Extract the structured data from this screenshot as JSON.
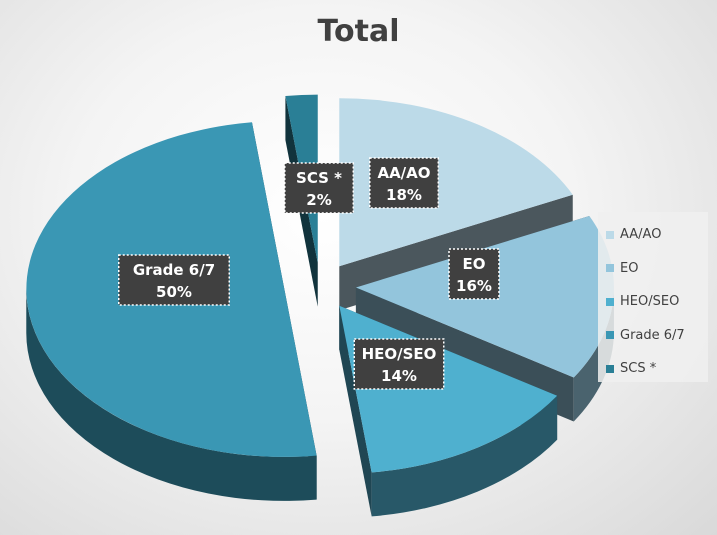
{
  "chart_data": {
    "type": "pie",
    "title": "Total",
    "categories": [
      "AA/AO",
      "EO",
      "HEO/SEO",
      "Grade 6/7",
      "SCS *"
    ],
    "values": [
      18,
      16,
      14,
      50,
      2
    ],
    "data_labels": [
      {
        "category": "AA/AO",
        "pct": "18%"
      },
      {
        "category": "EO",
        "pct": "16%"
      },
      {
        "category": "HEO/SEO",
        "pct": "14%"
      },
      {
        "category": "Grade 6/7",
        "pct": "50%"
      },
      {
        "category": "SCS *",
        "pct": "2%"
      }
    ],
    "colors": [
      "#bcdae8",
      "#93c5dc",
      "#4fb0cf",
      "#3a97b4",
      "#2a7f96"
    ],
    "style": "3d-exploded",
    "legend": "right"
  }
}
